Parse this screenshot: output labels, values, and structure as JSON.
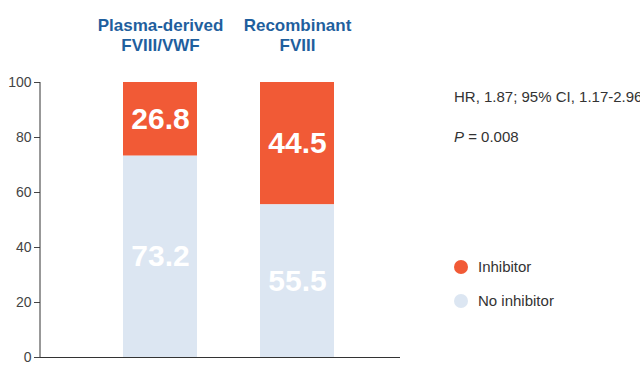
{
  "chart_data": {
    "type": "bar",
    "stacked": true,
    "categories": [
      "Plasma-derived FVIII/VWF",
      "Recombinant FVIII"
    ],
    "series": [
      {
        "name": "Inhibitor",
        "color": "#f15a36",
        "values": [
          26.8,
          44.5
        ]
      },
      {
        "name": "No inhibitor",
        "color": "#dce6f2",
        "values": [
          73.2,
          55.5
        ]
      }
    ],
    "ylim": [
      0,
      100
    ],
    "yticks": [
      0,
      20,
      40,
      60,
      80,
      100
    ],
    "grid": false,
    "data_labels": true,
    "legend": "right",
    "annotations": [
      "HR, 1.87; 95% CI, 1.17-2.96",
      "P = 0.008"
    ]
  }
}
